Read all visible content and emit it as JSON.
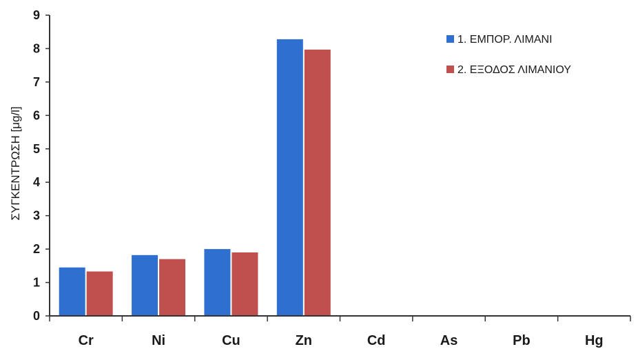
{
  "chart_data": {
    "type": "bar",
    "categories": [
      "Cr",
      "Ni",
      "Cu",
      "Zn",
      "Cd",
      "As",
      "Pb",
      "Hg"
    ],
    "series": [
      {
        "name": "1. ΕΜΠΟΡ. ΛΙΜΑΝΙ",
        "color": "#2e6fd0",
        "values": [
          1.45,
          1.82,
          2.0,
          8.28,
          0,
          0,
          0,
          0
        ]
      },
      {
        "name": "2. ΕΞΟΔΟΣ ΛΙΜΑΝΙΟΥ",
        "color": "#c0504d",
        "values": [
          1.33,
          1.7,
          1.9,
          7.97,
          0,
          0,
          0,
          0
        ]
      }
    ],
    "ylabel": "ΣΥΓΚΕΝΤΡΩΣΗ [μg/l]",
    "xlabel": "",
    "ylim": [
      0,
      9
    ],
    "yticks": [
      "0",
      "1",
      "2",
      "3",
      "4",
      "5",
      "6",
      "7",
      "8",
      "9"
    ],
    "grid": false,
    "legend_position": "top-right"
  }
}
